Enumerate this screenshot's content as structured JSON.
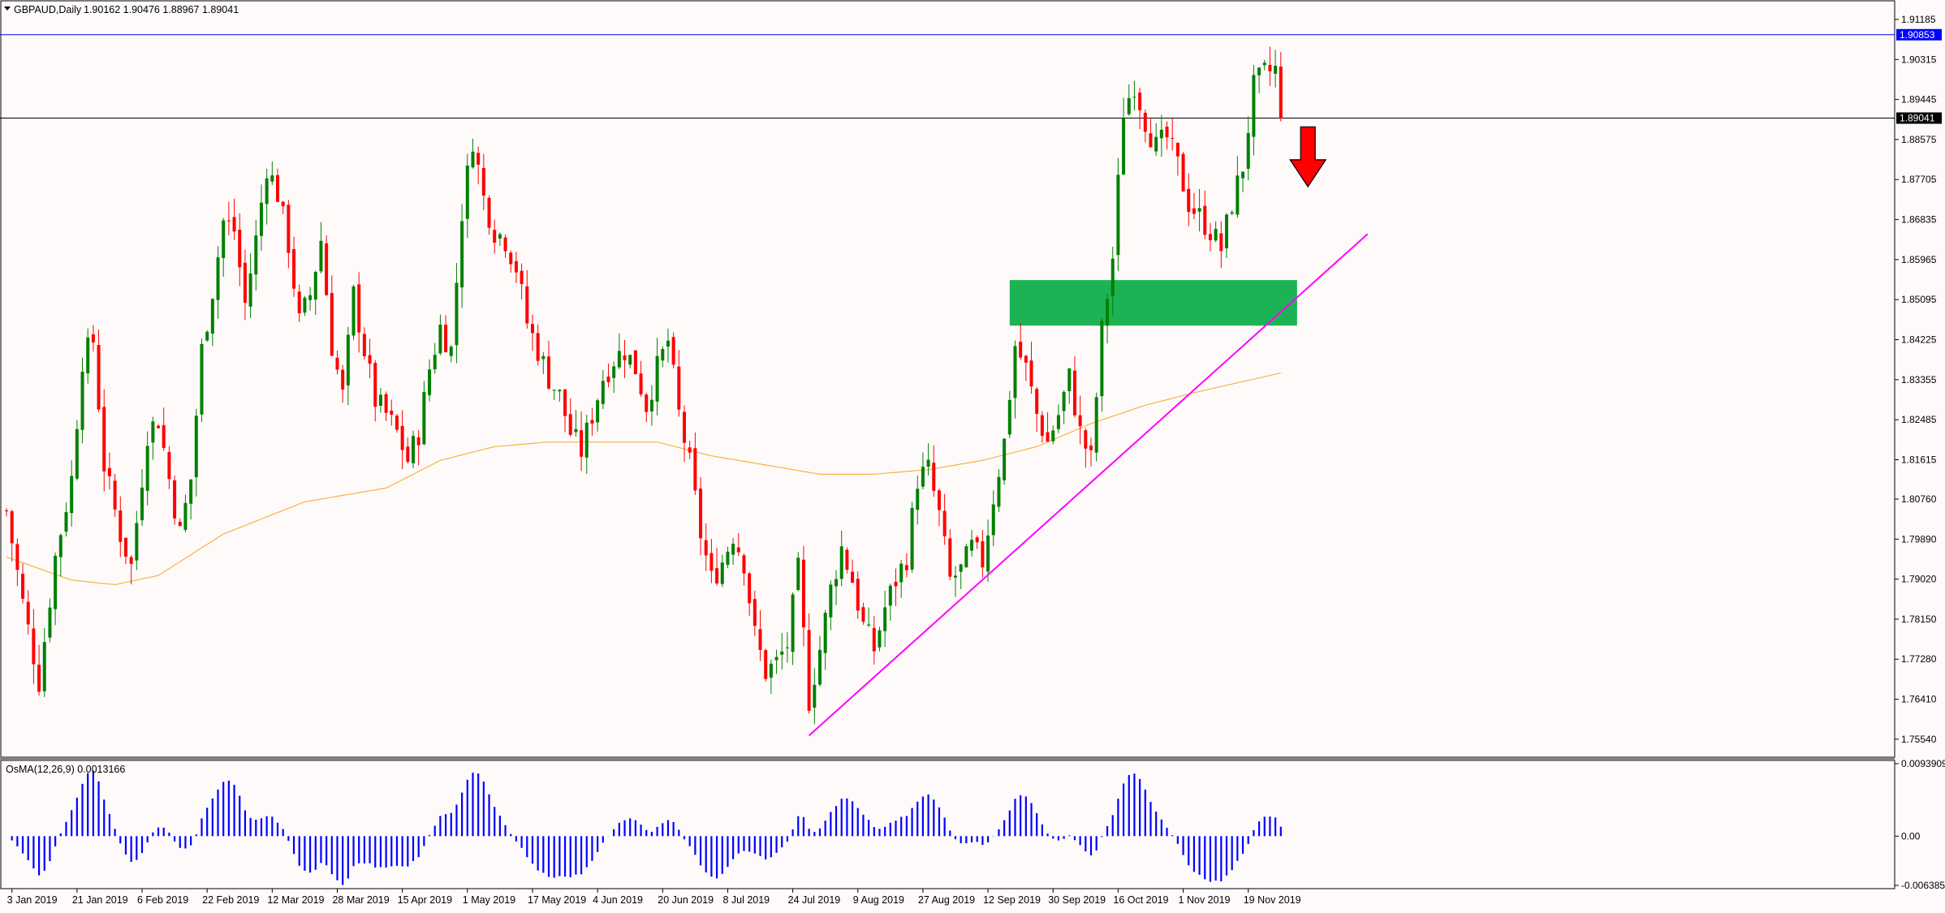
{
  "header": {
    "symbol_text": "GBPAUD,Daily",
    "ohlc_text": "1.90162 1.90476 1.88967 1.89041"
  },
  "indicator": {
    "label": "OsMA(12,26,9) 0.0013166",
    "ticks": [
      "0.0093909",
      "0.00",
      "-0.006385"
    ],
    "tick_values": [
      0.0093909,
      0.0,
      -0.006385
    ],
    "color": "#0000ff"
  },
  "price_axis": {
    "ticks": [
      "1.91185",
      "1.90315",
      "1.89445",
      "1.88575",
      "1.87705",
      "1.86835",
      "1.85965",
      "1.85095",
      "1.84225",
      "1.83355",
      "1.82485",
      "1.81615",
      "1.80760",
      "1.79890",
      "1.79020",
      "1.78150",
      "1.77280",
      "1.76410",
      "1.75540"
    ],
    "tick_values": [
      1.91185,
      1.90315,
      1.89445,
      1.88575,
      1.87705,
      1.86835,
      1.85965,
      1.85095,
      1.84225,
      1.83355,
      1.82485,
      1.81615,
      1.8076,
      1.7989,
      1.7902,
      1.7815,
      1.7728,
      1.7641,
      1.7554
    ],
    "blue_line_label": "1.90853",
    "blue_line_value": 1.90853,
    "current_label": "1.89041",
    "current_value": 1.89041
  },
  "time_axis": {
    "labels": [
      "3 Jan 2019",
      "21 Jan 2019",
      "6 Feb 2019",
      "22 Feb 2019",
      "12 Mar 2019",
      "28 Mar 2019",
      "15 Apr 2019",
      "1 May 2019",
      "17 May 2019",
      "4 Jun 2019",
      "20 Jun 2019",
      "8 Jul 2019",
      "24 Jul 2019",
      "9 Aug 2019",
      "27 Aug 2019",
      "12 Sep 2019",
      "30 Sep 2019",
      "16 Oct 2019",
      "1 Nov 2019",
      "19 Nov 2019"
    ],
    "label_bar_index": [
      1,
      13,
      25,
      37,
      49,
      61,
      73,
      85,
      97,
      109,
      121,
      133,
      145,
      157,
      169,
      181,
      193,
      205,
      217,
      229
    ]
  },
  "chart_data": {
    "type": "candlestick",
    "symbol": "GBPAUD",
    "timeframe": "Daily",
    "ylim": [
      1.7515,
      1.9159
    ],
    "bull_color": "#008000",
    "bear_color": "#ff0000",
    "ma_color": "#f5b342",
    "trendline_color": "#ff00ff",
    "zone_color": "#1db354",
    "arrow_color": "#ff0000",
    "waypoints": [
      [
        0,
        1.805
      ],
      [
        3,
        1.785
      ],
      [
        6,
        1.768
      ],
      [
        9,
        1.795
      ],
      [
        12,
        1.812
      ],
      [
        14,
        1.838
      ],
      [
        16,
        1.842
      ],
      [
        18,
        1.815
      ],
      [
        21,
        1.8
      ],
      [
        23,
        1.793
      ],
      [
        26,
        1.822
      ],
      [
        28,
        1.825
      ],
      [
        30,
        1.812
      ],
      [
        32,
        1.8
      ],
      [
        34,
        1.812
      ],
      [
        36,
        1.84
      ],
      [
        38,
        1.853
      ],
      [
        40,
        1.868
      ],
      [
        42,
        1.866
      ],
      [
        44,
        1.85
      ],
      [
        46,
        1.864
      ],
      [
        48,
        1.88
      ],
      [
        50,
        1.874
      ],
      [
        52,
        1.863
      ],
      [
        54,
        1.846
      ],
      [
        56,
        1.852
      ],
      [
        58,
        1.864
      ],
      [
        60,
        1.841
      ],
      [
        62,
        1.83
      ],
      [
        64,
        1.852
      ],
      [
        66,
        1.84
      ],
      [
        68,
        1.829
      ],
      [
        70,
        1.826
      ],
      [
        72,
        1.822
      ],
      [
        74,
        1.816
      ],
      [
        76,
        1.822
      ],
      [
        78,
        1.836
      ],
      [
        80,
        1.845
      ],
      [
        82,
        1.84
      ],
      [
        84,
        1.87
      ],
      [
        86,
        1.886
      ],
      [
        88,
        1.873
      ],
      [
        90,
        1.866
      ],
      [
        92,
        1.864
      ],
      [
        94,
        1.858
      ],
      [
        96,
        1.846
      ],
      [
        98,
        1.84
      ],
      [
        100,
        1.834
      ],
      [
        102,
        1.83
      ],
      [
        104,
        1.822
      ],
      [
        106,
        1.818
      ],
      [
        108,
        1.826
      ],
      [
        110,
        1.834
      ],
      [
        112,
        1.838
      ],
      [
        114,
        1.84
      ],
      [
        116,
        1.836
      ],
      [
        118,
        1.828
      ],
      [
        120,
        1.836
      ],
      [
        122,
        1.842
      ],
      [
        124,
        1.826
      ],
      [
        126,
        1.815
      ],
      [
        128,
        1.8
      ],
      [
        130,
        1.79
      ],
      [
        132,
        1.794
      ],
      [
        134,
        1.8
      ],
      [
        136,
        1.794
      ],
      [
        138,
        1.778
      ],
      [
        140,
        1.77
      ],
      [
        142,
        1.772
      ],
      [
        144,
        1.776
      ],
      [
        146,
        1.792
      ],
      [
        148,
        1.764
      ],
      [
        150,
        1.775
      ],
      [
        152,
        1.788
      ],
      [
        154,
        1.797
      ],
      [
        156,
        1.79
      ],
      [
        158,
        1.78
      ],
      [
        160,
        1.775
      ],
      [
        162,
        1.784
      ],
      [
        164,
        1.79
      ],
      [
        166,
        1.795
      ],
      [
        168,
        1.812
      ],
      [
        170,
        1.814
      ],
      [
        172,
        1.804
      ],
      [
        174,
        1.79
      ],
      [
        176,
        1.792
      ],
      [
        178,
        1.797
      ],
      [
        180,
        1.794
      ],
      [
        182,
        1.808
      ],
      [
        184,
        1.82
      ],
      [
        186,
        1.841
      ],
      [
        188,
        1.836
      ],
      [
        190,
        1.826
      ],
      [
        192,
        1.82
      ],
      [
        194,
        1.826
      ],
      [
        196,
        1.834
      ],
      [
        198,
        1.822
      ],
      [
        200,
        1.816
      ],
      [
        202,
        1.844
      ],
      [
        204,
        1.86
      ],
      [
        206,
        1.892
      ],
      [
        208,
        1.898
      ],
      [
        210,
        1.89
      ],
      [
        212,
        1.884
      ],
      [
        214,
        1.886
      ],
      [
        216,
        1.88
      ],
      [
        218,
        1.872
      ],
      [
        220,
        1.869
      ],
      [
        222,
        1.866
      ],
      [
        224,
        1.862
      ],
      [
        226,
        1.872
      ],
      [
        228,
        1.88
      ],
      [
        230,
        1.897
      ],
      [
        232,
        1.9
      ],
      [
        234,
        1.901
      ],
      [
        235,
        1.89041
      ]
    ],
    "ma_waypoints": [
      [
        0,
        1.795
      ],
      [
        12,
        1.79
      ],
      [
        20,
        1.789
      ],
      [
        28,
        1.791
      ],
      [
        40,
        1.8
      ],
      [
        55,
        1.807
      ],
      [
        70,
        1.81
      ],
      [
        80,
        1.816
      ],
      [
        90,
        1.819
      ],
      [
        100,
        1.82
      ],
      [
        110,
        1.82
      ],
      [
        120,
        1.82
      ],
      [
        130,
        1.817
      ],
      [
        140,
        1.815
      ],
      [
        150,
        1.813
      ],
      [
        160,
        1.813
      ],
      [
        170,
        1.814
      ],
      [
        180,
        1.816
      ],
      [
        190,
        1.819
      ],
      [
        200,
        1.824
      ],
      [
        210,
        1.828
      ],
      [
        220,
        1.831
      ],
      [
        235,
        1.835
      ]
    ],
    "trendline": [
      [
        148,
        1.7562
      ],
      [
        251,
        1.8652
      ]
    ],
    "resistance_zone": {
      "from_bar": 185,
      "to_bar": 238,
      "low": 1.8453,
      "high": 1.8552
    },
    "blue_resistance": 1.90853,
    "current_price": 1.89041,
    "arrow": {
      "direction": "down",
      "bar": 240,
      "top": 1.8885,
      "bottom": 1.8755
    }
  }
}
